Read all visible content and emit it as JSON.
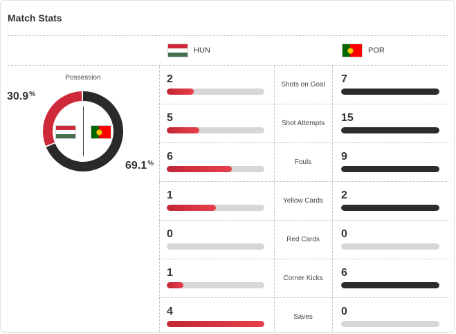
{
  "header": {
    "title": "Match Stats"
  },
  "teams": {
    "home": {
      "code": "HUN",
      "color": "#ce2939"
    },
    "away": {
      "code": "POR",
      "color": "#2c2c2c"
    }
  },
  "possession": {
    "label": "Possession",
    "home_text": "30.9",
    "away_text": "69.1",
    "unit": "%",
    "home_value": 30.9,
    "away_value": 69.1
  },
  "stats": [
    {
      "label": "Shots on Goal",
      "home": "2",
      "away": "7",
      "home_fill": 0.28,
      "away_fill": 1.0
    },
    {
      "label": "Shot Attempts",
      "home": "5",
      "away": "15",
      "home_fill": 0.33,
      "away_fill": 1.0
    },
    {
      "label": "Fouls",
      "home": "6",
      "away": "9",
      "home_fill": 0.67,
      "away_fill": 1.0
    },
    {
      "label": "Yellow Cards",
      "home": "1",
      "away": "2",
      "home_fill": 0.5,
      "away_fill": 1.0
    },
    {
      "label": "Red Cards",
      "home": "0",
      "away": "0",
      "home_fill": 0.0,
      "away_fill": 0.0
    },
    {
      "label": "Corner Kicks",
      "home": "1",
      "away": "6",
      "home_fill": 0.17,
      "away_fill": 1.0
    },
    {
      "label": "Saves",
      "home": "4",
      "away": "0",
      "home_fill": 1.0,
      "away_fill": 0.0
    }
  ]
}
